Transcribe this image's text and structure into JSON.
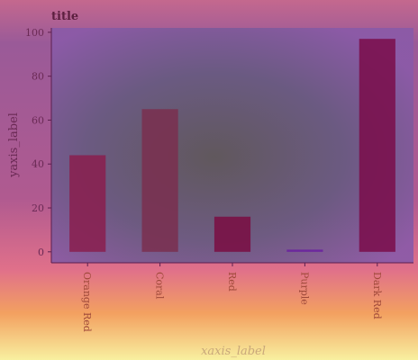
{
  "chart_data": {
    "type": "bar",
    "title": "title",
    "xlabel": "xaxis_label",
    "ylabel": "yaxis_label",
    "categories": [
      "Orange Red",
      "Coral",
      "Red",
      "Purple",
      "Dark Red"
    ],
    "values": [
      44,
      65,
      16,
      1,
      97
    ],
    "ylim": [
      -5,
      102
    ],
    "yticks": [
      0,
      20,
      40,
      60,
      80,
      100
    ],
    "bar_colors": [
      "#8a1f4e",
      "#7a2f4f",
      "#7a0d42",
      "#6a1fa0",
      "#7a0d4a"
    ],
    "colors": {
      "axis": "#5c1f4f",
      "title": "#5c1f3f",
      "tick_label": "#6b2a55",
      "xtick_label": "#a04a3a",
      "xlabel": "#c9a87a"
    }
  }
}
